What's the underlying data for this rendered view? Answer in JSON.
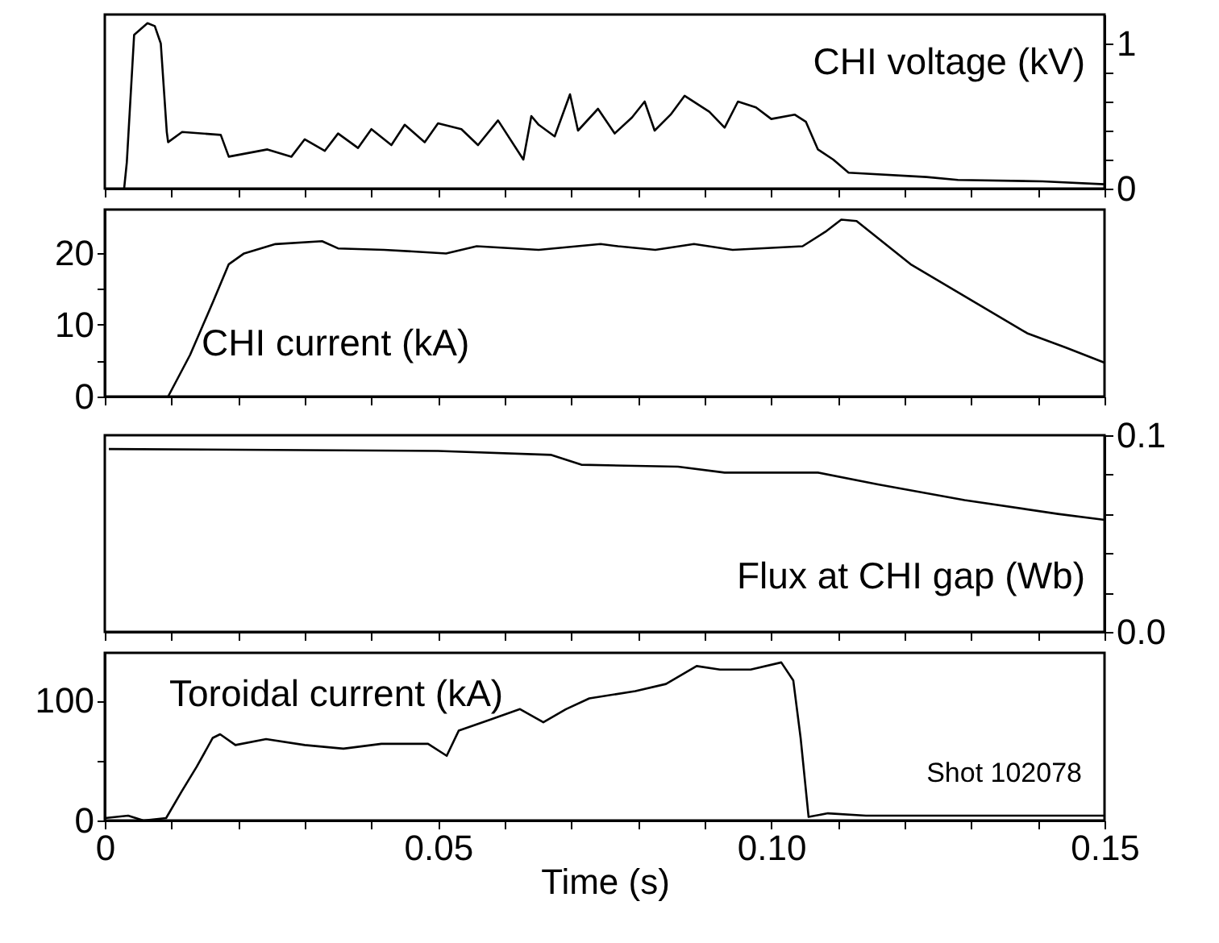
{
  "chart_data": [
    {
      "type": "line",
      "y2label": "CHI voltage (kV)",
      "xlim": [
        0,
        0.15
      ],
      "xticks": [
        {
          "value": 0,
          "label": null
        },
        {
          "value": 0.01,
          "label": null
        },
        {
          "value": 0.02,
          "label": null
        },
        {
          "value": 0.03,
          "label": null
        },
        {
          "value": 0.04,
          "label": null
        },
        {
          "value": 0.05,
          "label": null
        },
        {
          "value": 0.06,
          "label": null
        },
        {
          "value": 0.07,
          "label": null
        },
        {
          "value": 0.08,
          "label": null
        },
        {
          "value": 0.09,
          "label": null
        },
        {
          "value": 0.1,
          "label": null
        },
        {
          "value": 0.11,
          "label": null
        },
        {
          "value": 0.12,
          "label": null
        },
        {
          "value": 0.13,
          "label": null
        },
        {
          "value": 0.14,
          "label": null
        },
        {
          "value": 0.15,
          "label": null
        }
      ],
      "y2lim": [
        0,
        1.2
      ],
      "y2ticks": [
        0,
        {
          "value": 0.2,
          "label": null
        },
        {
          "value": 0.4,
          "label": null
        },
        {
          "value": 0.6,
          "label": null
        },
        {
          "value": 0.8,
          "label": null
        },
        1
      ],
      "tick_labels": "y",
      "grid": false,
      "marker": "none",
      "line_style": "solid",
      "series": [
        {
          "axis": "y2",
          "color": "#000000",
          "x": [
            0.0029,
            0.0033,
            0.0044,
            0.0064,
            0.0075,
            0.0084,
            0.0093,
            0.0095,
            0.0116,
            0.0174,
            0.0186,
            0.0244,
            0.028,
            0.03,
            0.033,
            0.035,
            0.038,
            0.04,
            0.043,
            0.045,
            0.048,
            0.05,
            0.0535,
            0.056,
            0.059,
            0.0628,
            0.064,
            0.0651,
            0.0675,
            0.0698,
            0.071,
            0.074,
            0.0765,
            0.0791,
            0.081,
            0.0825,
            0.0849,
            0.087,
            0.0907,
            0.093,
            0.095,
            0.0977,
            0.1,
            0.1035,
            0.1052,
            0.107,
            0.1093,
            0.1116,
            0.1233,
            0.128,
            0.1407,
            0.15
          ],
          "values": [
            0,
            0.18,
            1.06,
            1.14,
            1.12,
            1.0,
            0.39,
            0.32,
            0.39,
            0.37,
            0.22,
            0.27,
            0.22,
            0.34,
            0.26,
            0.38,
            0.28,
            0.41,
            0.3,
            0.44,
            0.32,
            0.45,
            0.41,
            0.3,
            0.47,
            0.2,
            0.5,
            0.44,
            0.36,
            0.65,
            0.4,
            0.55,
            0.38,
            0.49,
            0.6,
            0.4,
            0.51,
            0.64,
            0.53,
            0.42,
            0.6,
            0.56,
            0.48,
            0.51,
            0.46,
            0.27,
            0.2,
            0.11,
            0.08,
            0.06,
            0.05,
            0.03
          ]
        }
      ]
    },
    {
      "type": "line",
      "ylabel": "CHI current (kA)",
      "xlim": [
        0,
        0.15
      ],
      "xticks": [
        {
          "value": 0,
          "label": null
        },
        {
          "value": 0.01,
          "label": null
        },
        {
          "value": 0.02,
          "label": null
        },
        {
          "value": 0.03,
          "label": null
        },
        {
          "value": 0.04,
          "label": null
        },
        {
          "value": 0.05,
          "label": null
        },
        {
          "value": 0.06,
          "label": null
        },
        {
          "value": 0.07,
          "label": null
        },
        {
          "value": 0.08,
          "label": null
        },
        {
          "value": 0.09,
          "label": null
        },
        {
          "value": 0.1,
          "label": null
        },
        {
          "value": 0.11,
          "label": null
        },
        {
          "value": 0.12,
          "label": null
        },
        {
          "value": 0.13,
          "label": null
        },
        {
          "value": 0.14,
          "label": null
        },
        {
          "value": 0.15,
          "label": null
        }
      ],
      "ylim": [
        0,
        26
      ],
      "yticks": [
        0,
        {
          "value": 5,
          "label": null
        },
        10,
        {
          "value": 15,
          "label": null
        },
        20
      ],
      "tick_labels": "y",
      "grid": false,
      "marker": "none",
      "line_style": "solid",
      "series": [
        {
          "color": "#000000",
          "x": [
            0.0095,
            0.0128,
            0.0163,
            0.0186,
            0.0209,
            0.0256,
            0.0326,
            0.035,
            0.0419,
            0.0512,
            0.0558,
            0.0651,
            0.0744,
            0.077,
            0.0826,
            0.0884,
            0.0942,
            0.1047,
            0.1081,
            0.1105,
            0.1128,
            0.1209,
            0.1302,
            0.1384,
            0.1442,
            0.15
          ],
          "values": [
            0,
            5.8,
            13.3,
            18.4,
            19.9,
            21.2,
            21.6,
            20.6,
            20.4,
            19.9,
            20.9,
            20.4,
            21.2,
            20.9,
            20.4,
            21.2,
            20.4,
            20.9,
            22.9,
            24.6,
            24.4,
            18.4,
            13.3,
            8.8,
            6.8,
            4.7
          ]
        }
      ]
    },
    {
      "type": "line",
      "y2label": "Flux at CHI gap (Wb)",
      "xlim": [
        0,
        0.15
      ],
      "xticks": [
        {
          "value": 0,
          "label": null
        },
        {
          "value": 0.01,
          "label": null
        },
        {
          "value": 0.02,
          "label": null
        },
        {
          "value": 0.03,
          "label": null
        },
        {
          "value": 0.04,
          "label": null
        },
        {
          "value": 0.05,
          "label": null
        },
        {
          "value": 0.06,
          "label": null
        },
        {
          "value": 0.07,
          "label": null
        },
        {
          "value": 0.08,
          "label": null
        },
        {
          "value": 0.09,
          "label": null
        },
        {
          "value": 0.1,
          "label": null
        },
        {
          "value": 0.11,
          "label": null
        },
        {
          "value": 0.12,
          "label": null
        },
        {
          "value": 0.13,
          "label": null
        },
        {
          "value": 0.14,
          "label": null
        },
        {
          "value": 0.15,
          "label": null
        }
      ],
      "y2lim": [
        0,
        0.1
      ],
      "y2ticks": [
        {
          "value": 0,
          "label": "0.0"
        },
        {
          "value": 0.02,
          "label": null
        },
        {
          "value": 0.04,
          "label": null
        },
        {
          "value": 0.06,
          "label": null
        },
        {
          "value": 0.08,
          "label": null
        },
        0.1
      ],
      "tick_labels": "y",
      "grid": false,
      "marker": "none",
      "line_style": "solid",
      "series": [
        {
          "axis": "y2",
          "color": "#000000",
          "x": [
            0.0006,
            0.05,
            0.067,
            0.0715,
            0.086,
            0.093,
            0.107,
            0.116,
            0.129,
            0.143,
            0.15
          ],
          "values": [
            0.093,
            0.092,
            0.09,
            0.085,
            0.084,
            0.081,
            0.081,
            0.075,
            0.067,
            0.06,
            0.057
          ]
        }
      ]
    },
    {
      "type": "line",
      "ylabel": "Toroidal current (kA)",
      "xlabel": "Time (s)",
      "annotations": [
        "Shot 102078"
      ],
      "xlim": [
        0,
        0.15
      ],
      "xticks": [
        0,
        {
          "value": 0.01,
          "label": null
        },
        {
          "value": 0.02,
          "label": null
        },
        {
          "value": 0.03,
          "label": null
        },
        {
          "value": 0.04,
          "label": null
        },
        0.05,
        {
          "value": 0.06,
          "label": null
        },
        {
          "value": 0.07,
          "label": null
        },
        {
          "value": 0.08,
          "label": null
        },
        {
          "value": 0.09,
          "label": null
        },
        {
          "value": 0.1,
          "label": "0.10"
        },
        {
          "value": 0.11,
          "label": null
        },
        {
          "value": 0.12,
          "label": null
        },
        {
          "value": 0.13,
          "label": null
        },
        {
          "value": 0.14,
          "label": null
        },
        0.15
      ],
      "ylim": [
        0,
        140
      ],
      "yticks": [
        0,
        {
          "value": 50,
          "label": null
        },
        100
      ],
      "grid": false,
      "marker": "none",
      "line_style": "solid",
      "series": [
        {
          "color": "#000000",
          "x": [
            0,
            0.0035,
            0.0058,
            0.0092,
            0.0115,
            0.0138,
            0.0162,
            0.0173,
            0.0196,
            0.0242,
            0.03,
            0.0358,
            0.0415,
            0.0485,
            0.0513,
            0.0531,
            0.0577,
            0.0623,
            0.0658,
            0.0692,
            0.0727,
            0.0796,
            0.0842,
            0.0888,
            0.0923,
            0.0969,
            0.1015,
            0.1033,
            0.1044,
            0.1056,
            0.1085,
            0.1142,
            0.15
          ],
          "values": [
            2,
            4,
            0,
            2,
            24,
            45,
            69,
            72,
            63,
            68,
            63,
            60,
            64,
            64,
            54,
            75,
            84,
            93,
            82,
            93,
            102,
            108,
            114,
            129,
            126,
            126,
            132,
            117,
            69,
            3,
            6,
            4,
            4
          ]
        }
      ]
    }
  ]
}
